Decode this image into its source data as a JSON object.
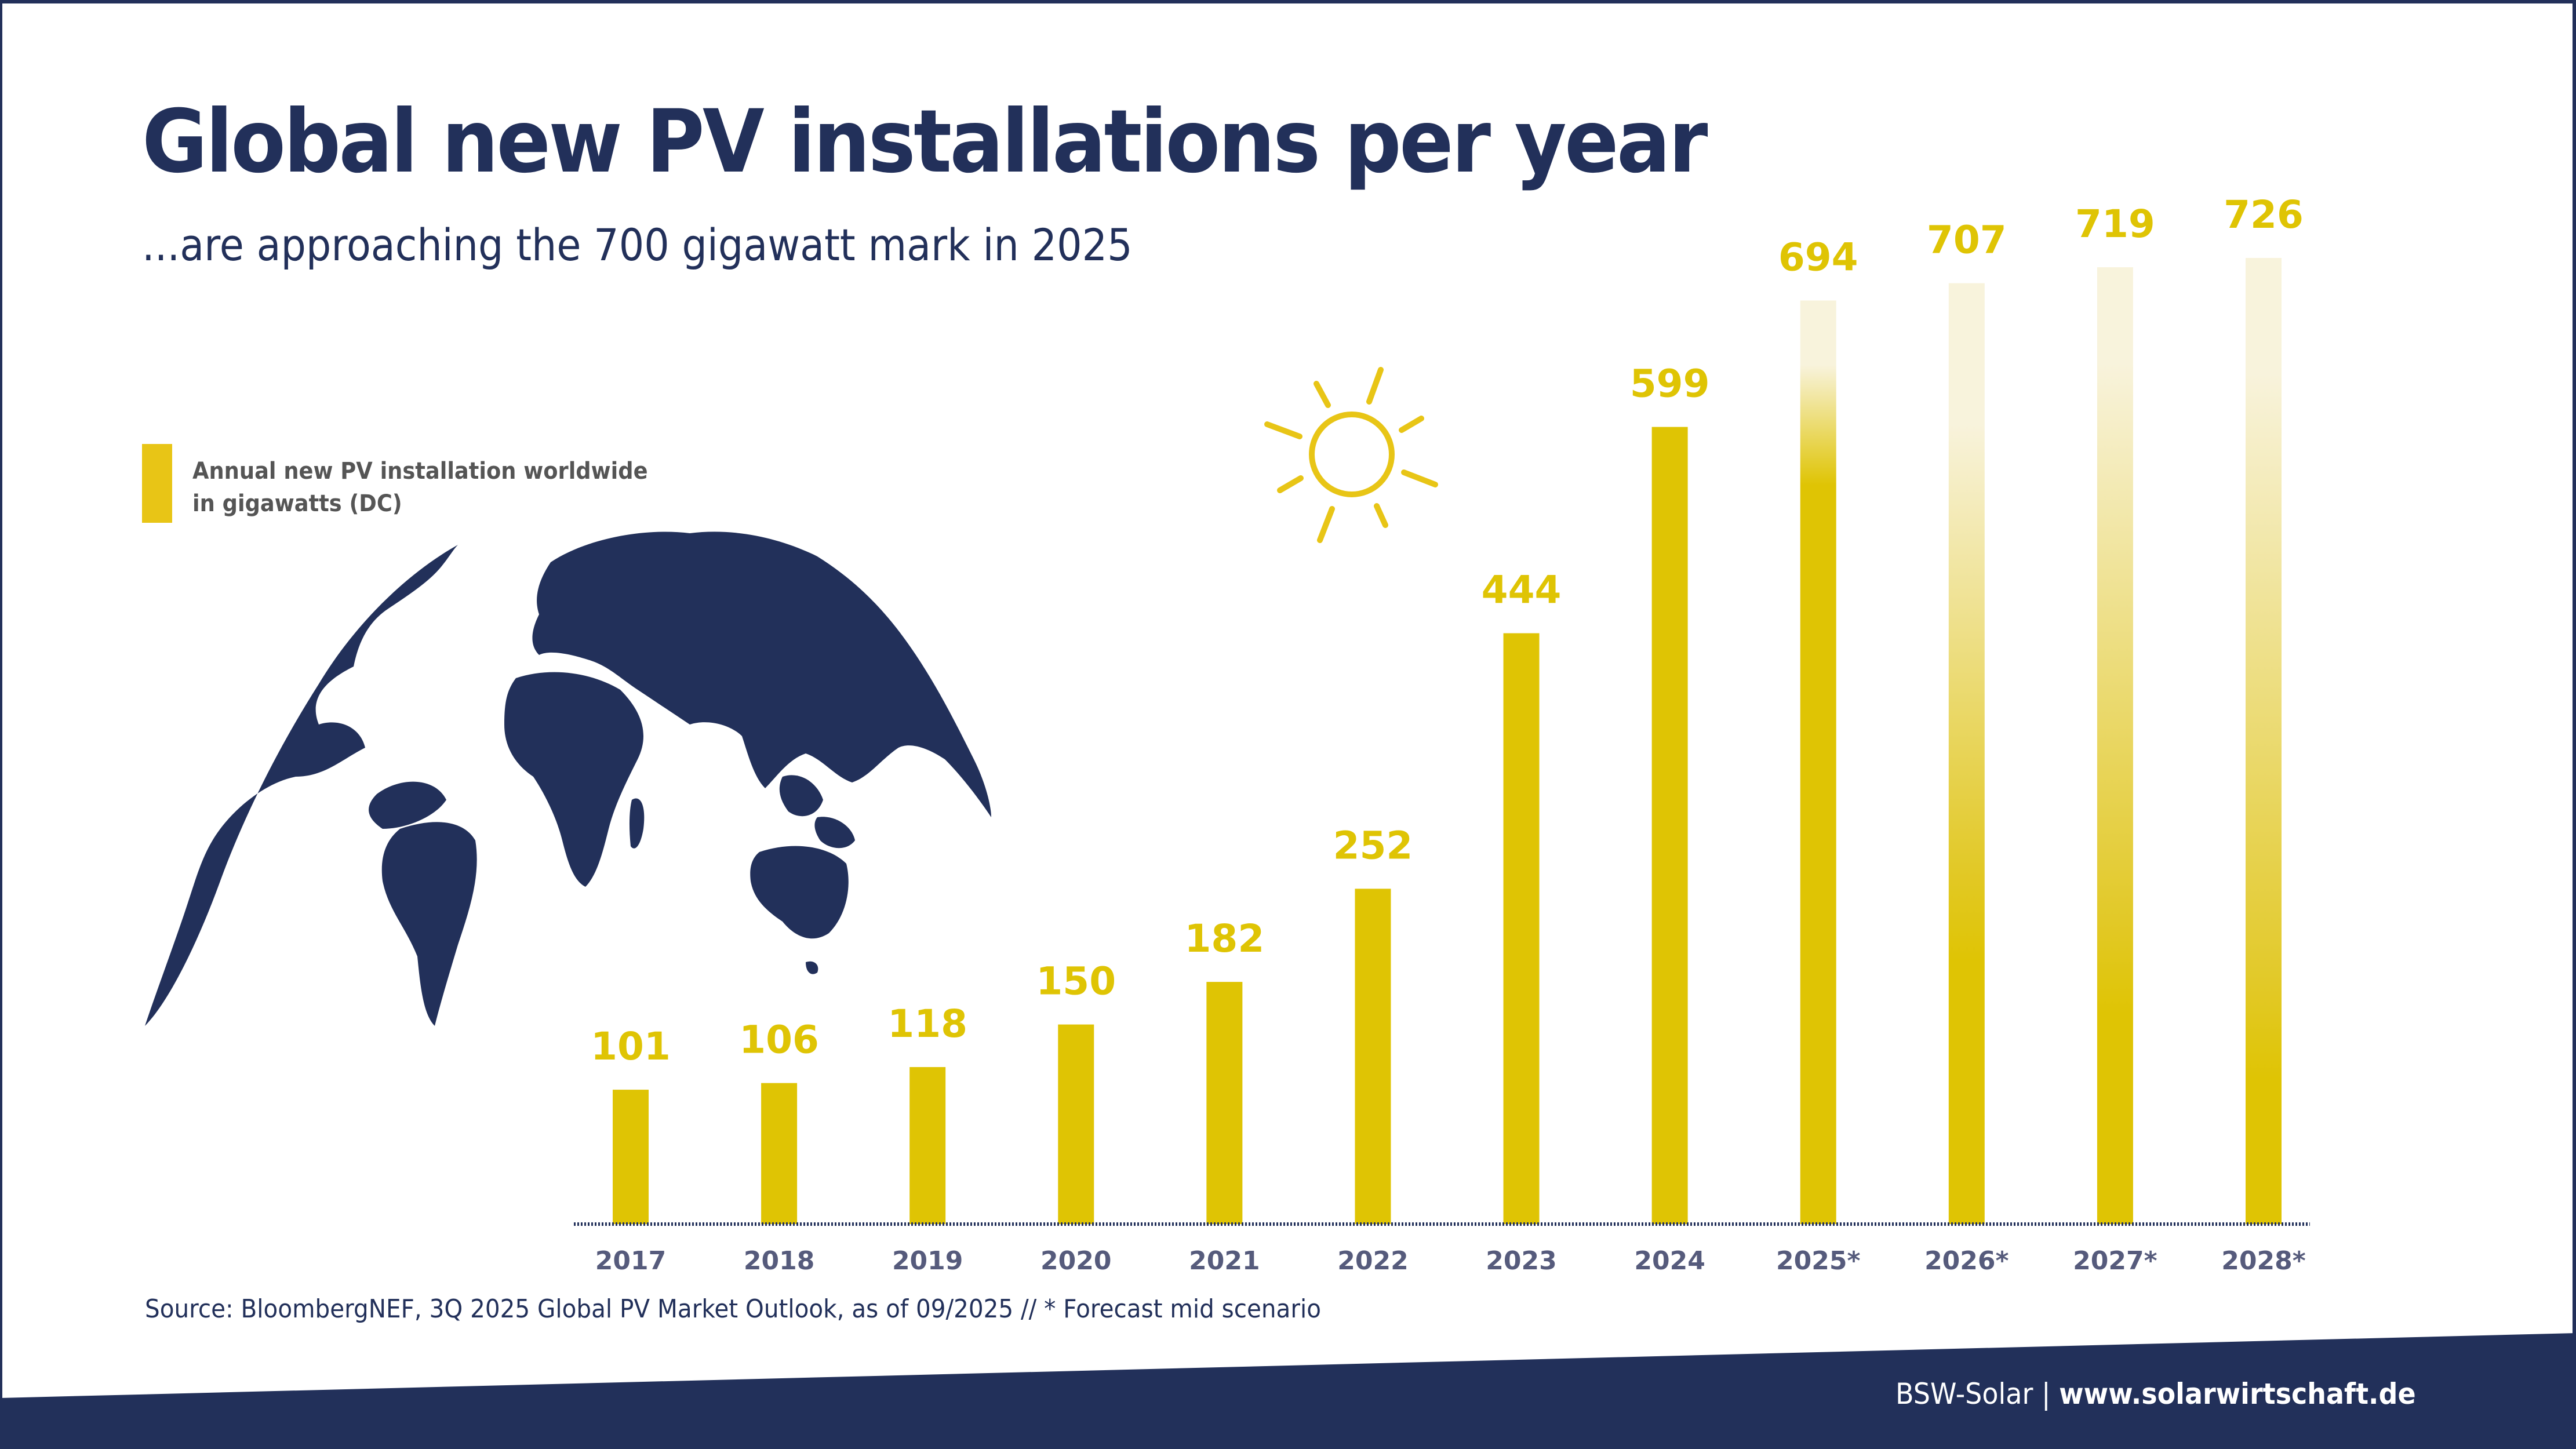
{
  "header": {
    "title": "Global new PV installations per year",
    "subtitle": "...are approaching the 700 gigawatt mark in 2025"
  },
  "legend": {
    "line1": "Annual new PV installation worldwide",
    "line2": "in gigawatts (DC)",
    "color": "#e8c516"
  },
  "decor": {
    "globe_icon": "world-map-globe",
    "sun_icon": "sun-outline",
    "globe_color": "#22305a",
    "sun_color": "#e8c516"
  },
  "chart_data": {
    "type": "bar",
    "title": "Global new PV installations per year",
    "subtitle": "...are approaching the 700 gigawatt mark in 2025",
    "xlabel": "",
    "ylabel": "Annual new PV installation worldwide in gigawatts (DC)",
    "categories": [
      "2017",
      "2018",
      "2019",
      "2020",
      "2021",
      "2022",
      "2023",
      "2024",
      "2025*",
      "2026*",
      "2027*",
      "2028*"
    ],
    "values": [
      101,
      106,
      118,
      150,
      182,
      252,
      444,
      599,
      694,
      707,
      719,
      726
    ],
    "forecast": [
      false,
      false,
      false,
      false,
      false,
      false,
      false,
      false,
      true,
      true,
      true,
      true
    ],
    "ylim": [
      0,
      726
    ],
    "grid": false,
    "legend_position": "top-left",
    "series": [
      {
        "name": "Annual new PV installation worldwide in gigawatts (DC)",
        "values": [
          101,
          106,
          118,
          150,
          182,
          252,
          444,
          599,
          694,
          707,
          719,
          726
        ]
      }
    ],
    "colors": {
      "bar": "#dfc404",
      "forecast_fade": "#f8f3dc",
      "value_label": "#dfc404",
      "tick_label": "#565b7c",
      "baseline": "#22305a"
    },
    "annotation": "* Forecast mid scenario"
  },
  "footer": {
    "source": "Source: BloombergNEF, 3Q 2025 Global PV Market Outlook, as of 09/2025 // * Forecast mid scenario",
    "brand": "BSW-Solar",
    "separator": "|",
    "url": "www.solarwirtschaft.de",
    "band_color": "#22305a"
  }
}
